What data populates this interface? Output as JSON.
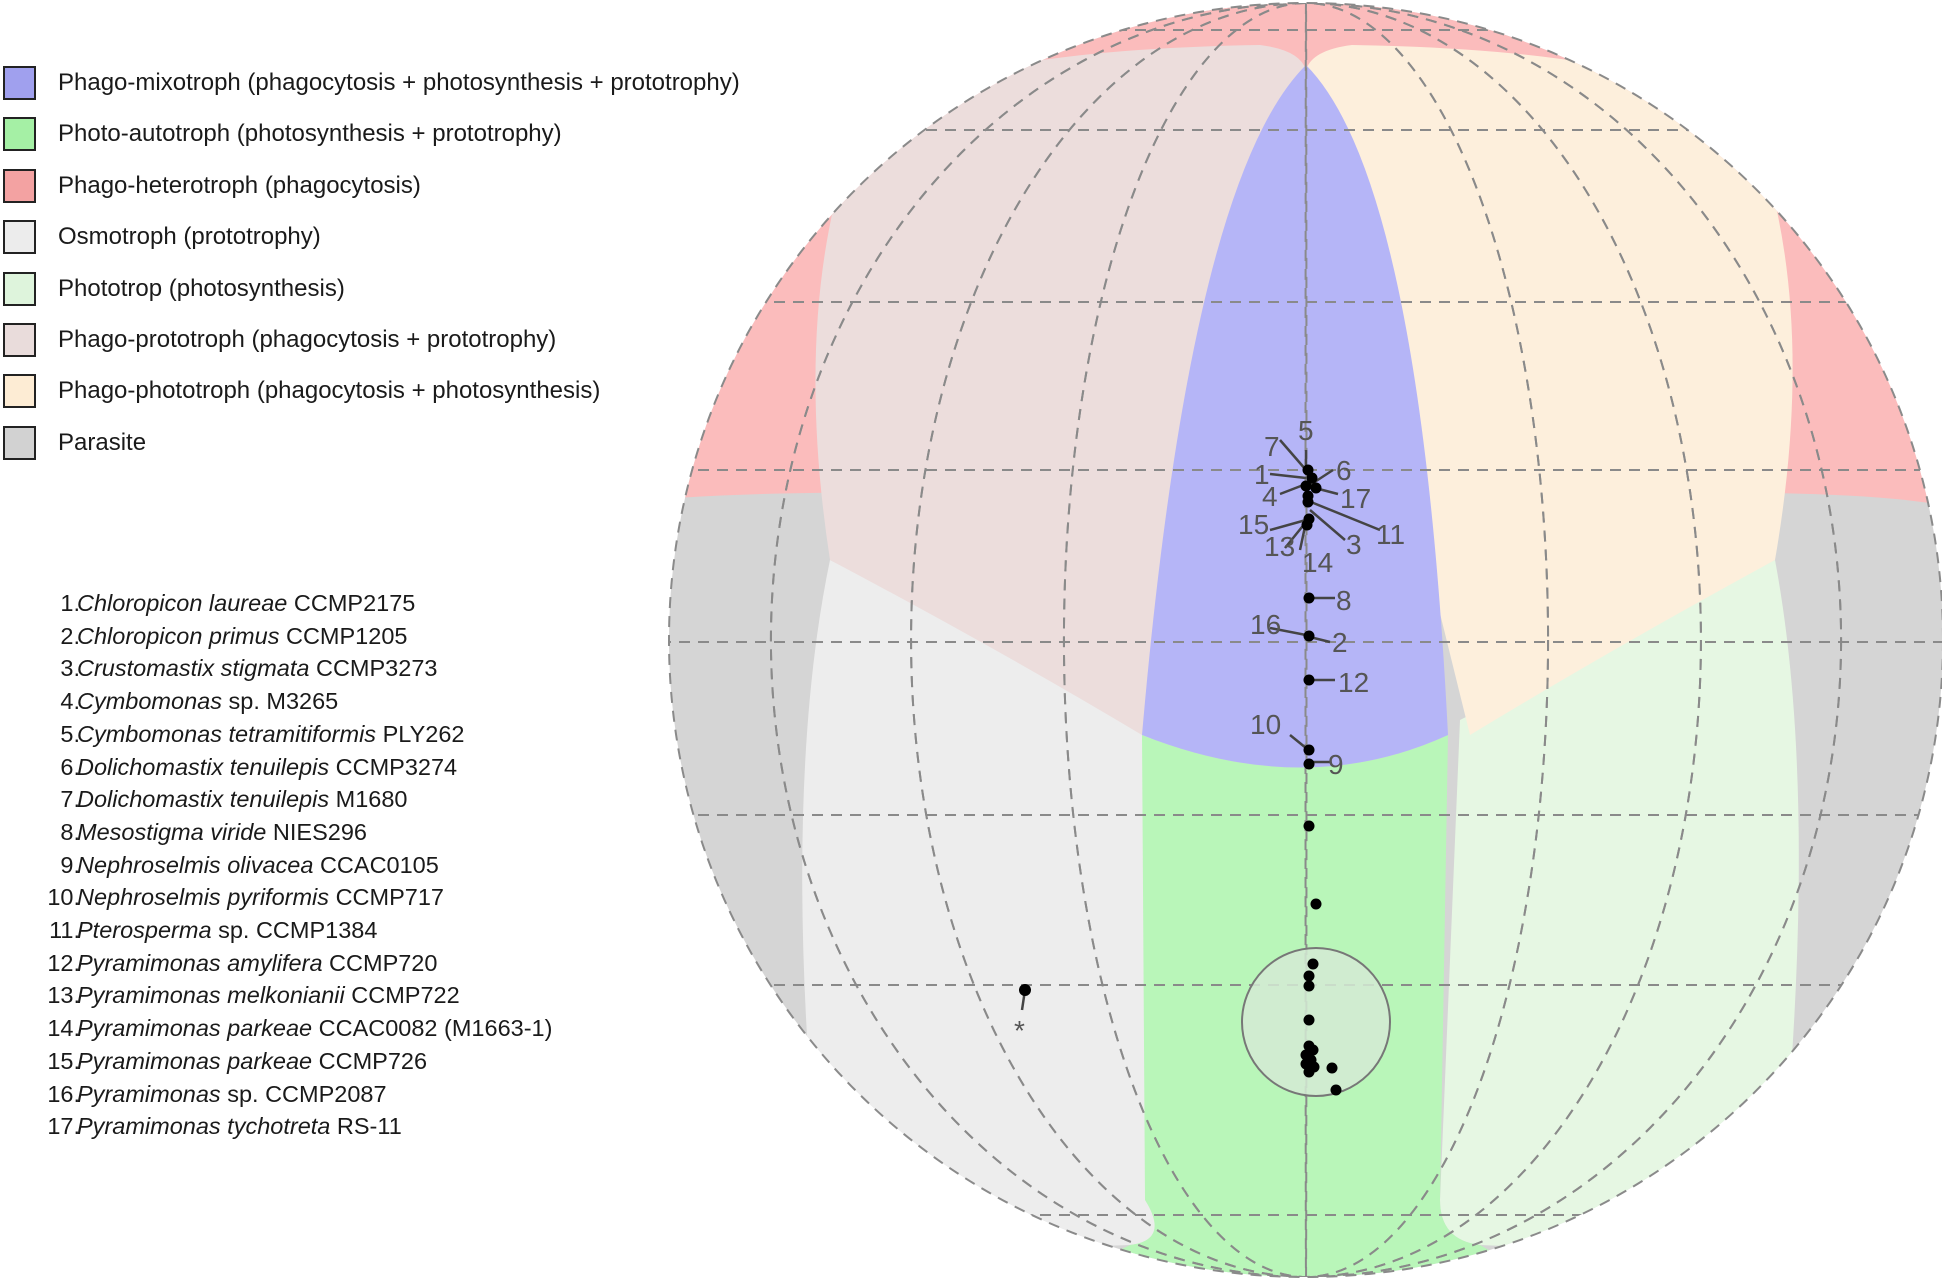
{
  "colors": {
    "phago_mixotroph": "#b5b5f7",
    "photo_autotroph": "#b9f6b9",
    "phago_heterotroph": "#fbbcbc",
    "osmotroph": "#ededed",
    "phototrop": "#e6f7e3",
    "phago_prototroph": "#ecdddc",
    "phago_phototroph": "#fdefdc",
    "parasite": "#d5d5d5",
    "points": "#000000",
    "point_labels": "#555555",
    "grid": "#8a8a8a"
  },
  "legend": [
    {
      "label": "Phago-mixotroph (phagocytosis + photosynthesis + prototrophy)",
      "color": "#a0a0ee"
    },
    {
      "label": "Photo-autotroph (photosynthesis + prototrophy)",
      "color": "#a5f0a5"
    },
    {
      "label": "Phago-heterotroph (phagocytosis)",
      "color": "#f3a2a2"
    },
    {
      "label": "Osmotroph (prototrophy)",
      "color": "#ececec"
    },
    {
      "label": "Phototrop (photosynthesis)",
      "color": "#def4dc"
    },
    {
      "label": "Phago-prototroph (phagocytosis + prototrophy)",
      "color": "#e9dcdb"
    },
    {
      "label": "Phago-phototroph (phagocytosis + photosynthesis)",
      "color": "#fdecd4"
    },
    {
      "label": "Parasite",
      "color": "#d2d2d2"
    }
  ],
  "species": [
    {
      "num": "1.",
      "genus": "Chloropicon laureae",
      "strain": "CCMP2175"
    },
    {
      "num": "2.",
      "genus": "Chloropicon primus",
      "strain": "CCMP1205"
    },
    {
      "num": "3.",
      "genus": "Crustomastix stigmata",
      "strain": "CCMP3273"
    },
    {
      "num": "4.",
      "genus": "Cymbomonas",
      "strain": "sp. M3265"
    },
    {
      "num": "5.",
      "genus": "Cymbomonas tetramitiformis",
      "strain": "PLY262"
    },
    {
      "num": "6.",
      "genus": "Dolichomastix tenuilepis",
      "strain": "CCMP3274"
    },
    {
      "num": "7.",
      "genus": "Dolichomastix tenuilepis",
      "strain": "M1680"
    },
    {
      "num": "8.",
      "genus": "Mesostigma viride",
      "strain": "NIES296"
    },
    {
      "num": "9.",
      "genus": "Nephroselmis olivacea",
      "strain": "CCAC0105"
    },
    {
      "num": "10.",
      "genus": "Nephroselmis pyriformis",
      "strain": "CCMP717"
    },
    {
      "num": "11.",
      "genus": "Pterosperma",
      "strain": "sp. CCMP1384"
    },
    {
      "num": "12.",
      "genus": "Pyramimonas amylifera",
      "strain": "CCMP720"
    },
    {
      "num": "13.",
      "genus": "Pyramimonas melkonianii",
      "strain": "CCMP722"
    },
    {
      "num": "14.",
      "genus": "Pyramimonas parkeae",
      "strain": "CCAC0082 (M1663-1)"
    },
    {
      "num": "15.",
      "genus": "Pyramimonas parkeae",
      "strain": "CCMP726"
    },
    {
      "num": "16.",
      "genus": "Pyramimonas",
      "strain": "sp. CCMP2087"
    },
    {
      "num": "17.",
      "genus": "Pyramimonas tychotreta",
      "strain": "RS-11"
    }
  ],
  "point_labels": [
    "1",
    "2",
    "3",
    "4",
    "5",
    "6",
    "7",
    "8",
    "9",
    "10",
    "11",
    "12",
    "13",
    "14",
    "15",
    "16",
    "17",
    "*"
  ]
}
